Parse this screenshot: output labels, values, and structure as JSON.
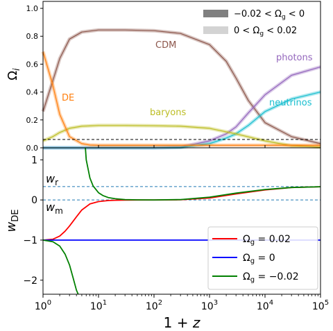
{
  "chart_data": [
    {
      "type": "line",
      "panel": "top",
      "xscale": "log",
      "xlim": [
        1,
        100000
      ],
      "ylim": [
        0,
        1.05
      ],
      "yticks": [
        "0.0",
        "0.2",
        "0.4",
        "0.6",
        "0.8",
        "1.0"
      ],
      "ylabel": "Ω_i",
      "legend": {
        "placement": "top-right",
        "entries": [
          {
            "label": "−0.02 < Ω_g < 0",
            "color": "#808080"
          },
          {
            "label": "0 < Ω_g < 0.02",
            "color": "#d3d3d3"
          }
        ]
      },
      "series": [
        {
          "name": "CDM",
          "color": "#8c564b",
          "x": [
            1,
            1.5,
            2,
            3,
            5,
            10,
            30,
            100,
            300,
            1000,
            2000,
            3000,
            5000,
            10000,
            30000,
            100000
          ],
          "y": [
            0.26,
            0.48,
            0.64,
            0.78,
            0.83,
            0.845,
            0.845,
            0.84,
            0.82,
            0.74,
            0.62,
            0.5,
            0.34,
            0.18,
            0.08,
            0.03
          ]
        },
        {
          "name": "photons",
          "color": "#9467bd",
          "x": [
            1,
            100,
            300,
            1000,
            2000,
            3000,
            5000,
            10000,
            30000,
            100000
          ],
          "y": [
            0,
            0,
            0.005,
            0.05,
            0.1,
            0.15,
            0.25,
            0.38,
            0.52,
            0.58
          ]
        },
        {
          "name": "neutrinos",
          "color": "#17becf",
          "x": [
            1,
            100,
            300,
            1000,
            2000,
            3000,
            5000,
            10000,
            30000,
            100000
          ],
          "y": [
            0,
            0,
            0.003,
            0.03,
            0.07,
            0.1,
            0.16,
            0.26,
            0.35,
            0.4
          ]
        },
        {
          "name": "baryons",
          "color": "#bcbd22",
          "x": [
            1,
            1.5,
            2,
            3,
            5,
            10,
            30,
            100,
            300,
            1000,
            3000,
            10000,
            30000,
            100000
          ],
          "y": [
            0.05,
            0.08,
            0.11,
            0.14,
            0.155,
            0.16,
            0.16,
            0.158,
            0.155,
            0.14,
            0.1,
            0.05,
            0.015,
            0.005
          ]
        },
        {
          "name": "DE",
          "color": "#ff7f0e",
          "x": [
            1,
            1.5,
            2,
            3,
            5,
            7,
            10,
            30,
            100,
            1000,
            100000
          ],
          "y": [
            0.69,
            0.45,
            0.24,
            0.08,
            0.03,
            0.02,
            0.018,
            0.018,
            0.018,
            0.018,
            0.018
          ]
        }
      ],
      "annotations": [
        {
          "text": "CDM",
          "color": "#8c564b"
        },
        {
          "text": "DE",
          "color": "#ff7f0e"
        },
        {
          "text": "baryons",
          "color": "#bcbd22"
        },
        {
          "text": "photons",
          "color": "#9467bd"
        },
        {
          "text": "neutrinos",
          "color": "#17becf"
        }
      ]
    },
    {
      "type": "line",
      "panel": "bottom",
      "xscale": "log",
      "xlim": [
        1,
        100000
      ],
      "ylim": [
        -2.35,
        1.3
      ],
      "yticks": [
        "1",
        "0",
        "−1",
        "−2"
      ],
      "xticks": [
        "10^0",
        "10^1",
        "10^2",
        "10^3",
        "10^4",
        "10^5"
      ],
      "xlabel": "1 + z",
      "ylabel": "w_DE",
      "reference_lines": [
        {
          "label": "w_r",
          "y": 0.3333,
          "color": "#1f77b4",
          "style": "dashed"
        },
        {
          "label": "w_m",
          "y": 0,
          "color": "#1f77b4",
          "style": "dashed"
        }
      ],
      "legend": {
        "placement": "lower-right",
        "entries": [
          {
            "label": "Ω_g = 0.02",
            "color": "#ff0000"
          },
          {
            "label": "Ω_g = 0",
            "color": "#0000ff"
          },
          {
            "label": "Ω_g = −0.02",
            "color": "#008000"
          }
        ]
      },
      "series": [
        {
          "name": "Ω_g = 0.02",
          "color": "#ff0000",
          "x": [
            1,
            1.5,
            2,
            2.5,
            3,
            4,
            5,
            7,
            10,
            15,
            20,
            30,
            50,
            100,
            300,
            1000,
            3000,
            10000,
            30000,
            100000
          ],
          "y": [
            -1,
            -0.98,
            -0.9,
            -0.78,
            -0.65,
            -0.42,
            -0.25,
            -0.1,
            -0.04,
            -0.015,
            -0.008,
            -0.003,
            -0.001,
            0,
            0.005,
            0.05,
            0.15,
            0.25,
            0.31,
            0.33
          ]
        },
        {
          "name": "Ω_g = 0",
          "color": "#0000ff",
          "x": [
            1,
            100000
          ],
          "y": [
            -1,
            -1
          ]
        },
        {
          "name": "Ω_g = −0.02",
          "color": "#008000",
          "x": [
            1,
            1.5,
            2,
            2.5,
            3,
            3.5,
            4,
            4.3
          ],
          "y": [
            -1,
            -1.04,
            -1.15,
            -1.35,
            -1.62,
            -1.95,
            -2.25,
            -2.35
          ]
        },
        {
          "name": "Ω_g = −0.02",
          "color": "#008000",
          "x": [
            5.8,
            6,
            7,
            8,
            10,
            12,
            15,
            20,
            30,
            50,
            100,
            300,
            1000,
            3000,
            10000,
            30000,
            100000
          ],
          "y": [
            1.3,
            1.0,
            0.55,
            0.35,
            0.18,
            0.11,
            0.06,
            0.03,
            0.01,
            0.003,
            0.001,
            0.01,
            0.07,
            0.17,
            0.26,
            0.31,
            0.33
          ]
        }
      ]
    }
  ]
}
